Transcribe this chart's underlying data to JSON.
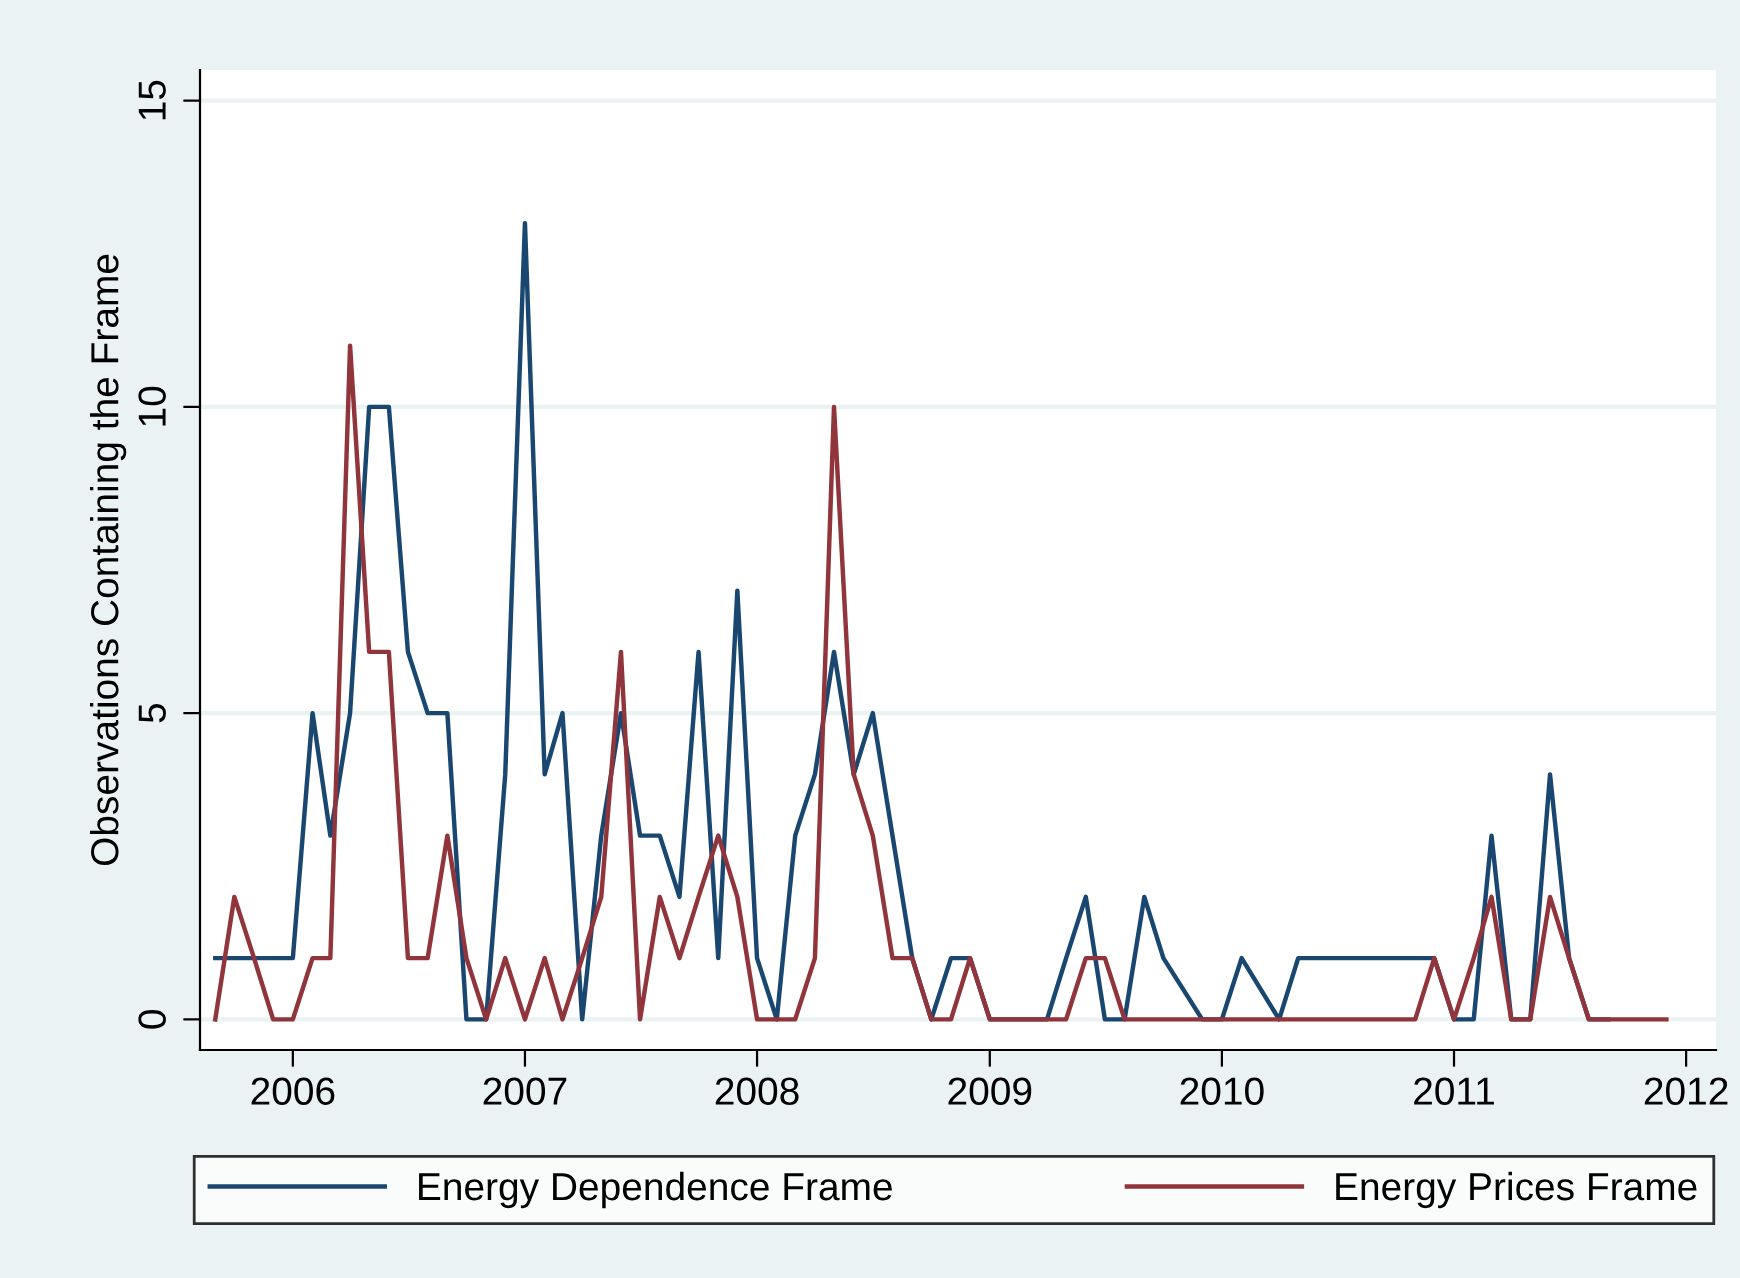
{
  "chart_data": {
    "type": "line",
    "ylabel": "Observations Containing the Frame",
    "x": [
      "2005-09",
      "2005-10",
      "2005-11",
      "2005-12",
      "2006-01",
      "2006-02",
      "2006-03",
      "2006-04",
      "2006-05",
      "2006-06",
      "2006-07",
      "2006-08",
      "2006-09",
      "2006-10",
      "2006-11",
      "2006-12",
      "2007-01",
      "2007-02",
      "2007-03",
      "2007-04",
      "2007-05",
      "2007-06",
      "2007-07",
      "2007-08",
      "2007-09",
      "2007-10",
      "2007-11",
      "2007-12",
      "2008-01",
      "2008-02",
      "2008-03",
      "2008-04",
      "2008-05",
      "2008-06",
      "2008-07",
      "2008-08",
      "2008-09",
      "2008-10",
      "2008-11",
      "2008-12",
      "2009-01",
      "2009-02",
      "2009-03",
      "2009-04",
      "2009-05",
      "2009-06",
      "2009-07",
      "2009-08",
      "2009-09",
      "2009-10",
      "2009-11",
      "2009-12",
      "2010-01",
      "2010-02",
      "2010-03",
      "2010-04",
      "2010-05",
      "2010-06",
      "2010-07",
      "2010-08",
      "2010-09",
      "2010-10",
      "2010-11",
      "2010-12",
      "2011-01",
      "2011-02",
      "2011-03",
      "2011-04",
      "2011-05",
      "2011-06",
      "2011-07",
      "2011-08",
      "2011-09",
      "2011-10",
      "2011-11",
      "2011-12"
    ],
    "series": [
      {
        "name": "Energy Dependence Frame",
        "color": "#1a476f",
        "values": [
          1,
          1,
          1,
          1,
          1,
          5,
          3,
          5,
          10,
          10,
          6,
          5,
          5,
          0,
          0,
          4,
          13,
          4,
          5,
          0,
          3,
          5,
          3,
          3,
          2,
          6,
          1,
          7,
          1,
          0,
          3,
          4,
          6,
          4,
          5,
          3,
          1,
          0,
          1,
          1,
          0,
          0,
          0,
          0,
          1,
          2,
          0,
          0,
          2,
          1,
          null,
          0,
          0,
          1,
          null,
          0,
          1,
          1,
          1,
          1,
          1,
          1,
          1,
          1,
          0,
          0,
          3,
          0,
          0,
          4,
          1,
          0,
          0,
          null,
          null,
          null
        ]
      },
      {
        "name": "Energy Prices Frame",
        "color": "#90353b",
        "values": [
          0,
          2,
          1,
          0,
          0,
          1,
          1,
          11,
          6,
          6,
          1,
          1,
          3,
          1,
          0,
          1,
          0,
          1,
          0,
          1,
          2,
          6,
          0,
          2,
          1,
          2,
          3,
          2,
          0,
          0,
          0,
          1,
          10,
          4,
          3,
          1,
          1,
          0,
          0,
          1,
          0,
          0,
          0,
          0,
          0,
          1,
          1,
          0,
          0,
          0,
          0,
          0,
          0,
          0,
          0,
          0,
          0,
          0,
          0,
          0,
          0,
          0,
          0,
          1,
          0,
          1,
          2,
          0,
          0,
          2,
          1,
          0,
          0,
          0,
          0,
          0
        ]
      }
    ],
    "xlim": [
      "2005-08-08",
      "2012-02-17"
    ],
    "xticks": [
      "2006",
      "2007",
      "2008",
      "2009",
      "2010",
      "2011",
      "2012"
    ],
    "ylim": [
      -0.5,
      15.5
    ],
    "yticks": [
      0,
      5,
      10,
      15
    ],
    "grid": "y",
    "legend": "bottom",
    "marker": "none",
    "line_style": "solid"
  }
}
